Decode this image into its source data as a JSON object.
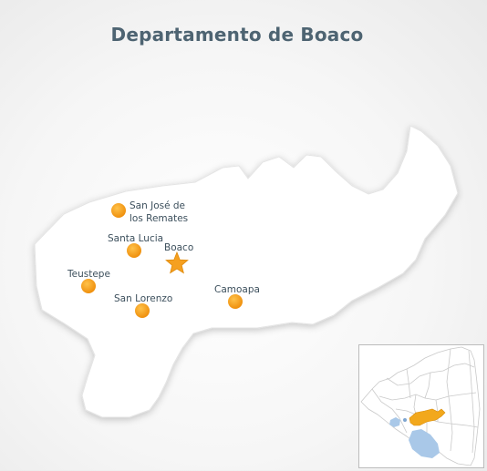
{
  "map": {
    "title": "Departamento de Boaco",
    "capital": {
      "name": "Boaco",
      "symbol": "star-icon",
      "color": "#f5a020"
    },
    "towns": [
      {
        "id": "san-jose",
        "name_line1": "San José de",
        "name_line2": "los Remates"
      },
      {
        "id": "santa-lucia",
        "name": "Santa Lucia"
      },
      {
        "id": "teustepe",
        "name": "Teustepe"
      },
      {
        "id": "san-lorenzo",
        "name": "San Lorenzo"
      },
      {
        "id": "camoapa",
        "name": "Camoapa"
      }
    ],
    "colors": {
      "title": "#4e6472",
      "label": "#3c4f5c",
      "town_dot": "#f7a21b",
      "department_fill": "#ffffff",
      "inset_highlight": "#f2a81c",
      "inset_lake": "#a9c8e8"
    }
  }
}
